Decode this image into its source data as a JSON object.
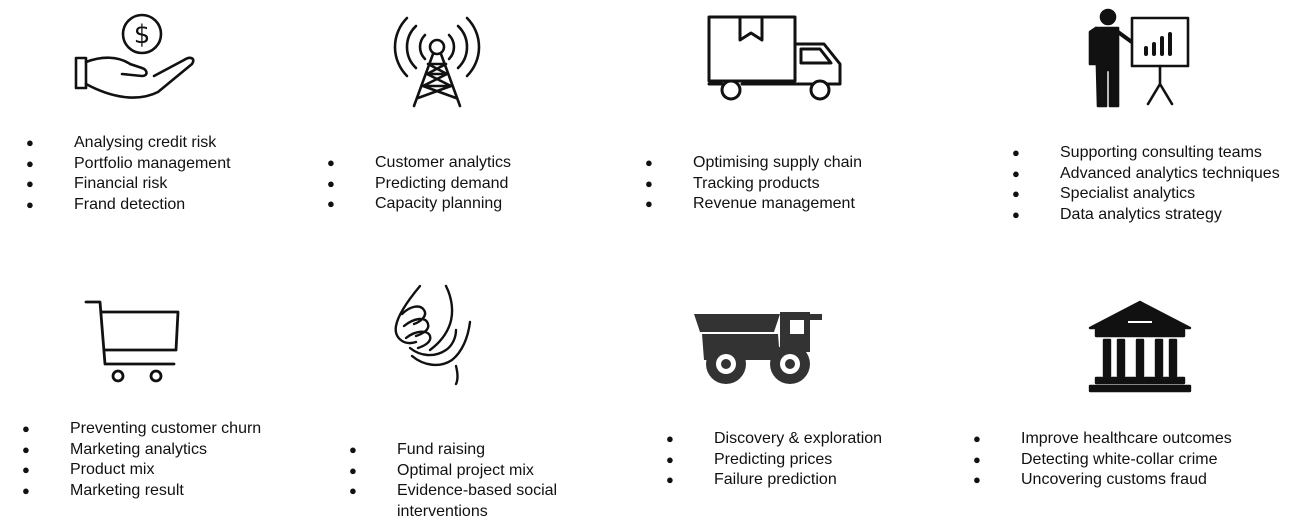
{
  "sectors": [
    {
      "icon": "hand-dollar-icon",
      "bullets": [
        "Analysing credit risk",
        "Portfolio management",
        "Financial risk",
        "Frand detection"
      ]
    },
    {
      "icon": "antenna-tower-icon",
      "bullets": [
        "Customer analytics",
        "Predicting demand",
        "Capacity planning"
      ]
    },
    {
      "icon": "delivery-truck-icon",
      "bullets": [
        "Optimising supply chain",
        "Tracking products",
        "Revenue management"
      ]
    },
    {
      "icon": "presenter-chart-icon",
      "bullets": [
        "Supporting consulting teams",
        "Advanced analytics techniques",
        "Specialist analytics",
        "Data analytics strategy"
      ]
    },
    {
      "icon": "shopping-cart-icon",
      "bullets": [
        "Preventing customer churn",
        "Marketing analytics",
        "Product mix",
        "Marketing result"
      ]
    },
    {
      "icon": "helping-hands-icon",
      "bullets": [
        "Fund raising",
        "Optimal project mix",
        "Evidence-based social interventions"
      ]
    },
    {
      "icon": "mining-truck-icon",
      "bullets": [
        "Discovery & exploration",
        "Predicting prices",
        "Failure prediction"
      ]
    },
    {
      "icon": "government-building-icon",
      "bullets": [
        "Improve healthcare outcomes",
        "Detecting white-collar crime",
        "Uncovering customs fraud"
      ]
    }
  ]
}
